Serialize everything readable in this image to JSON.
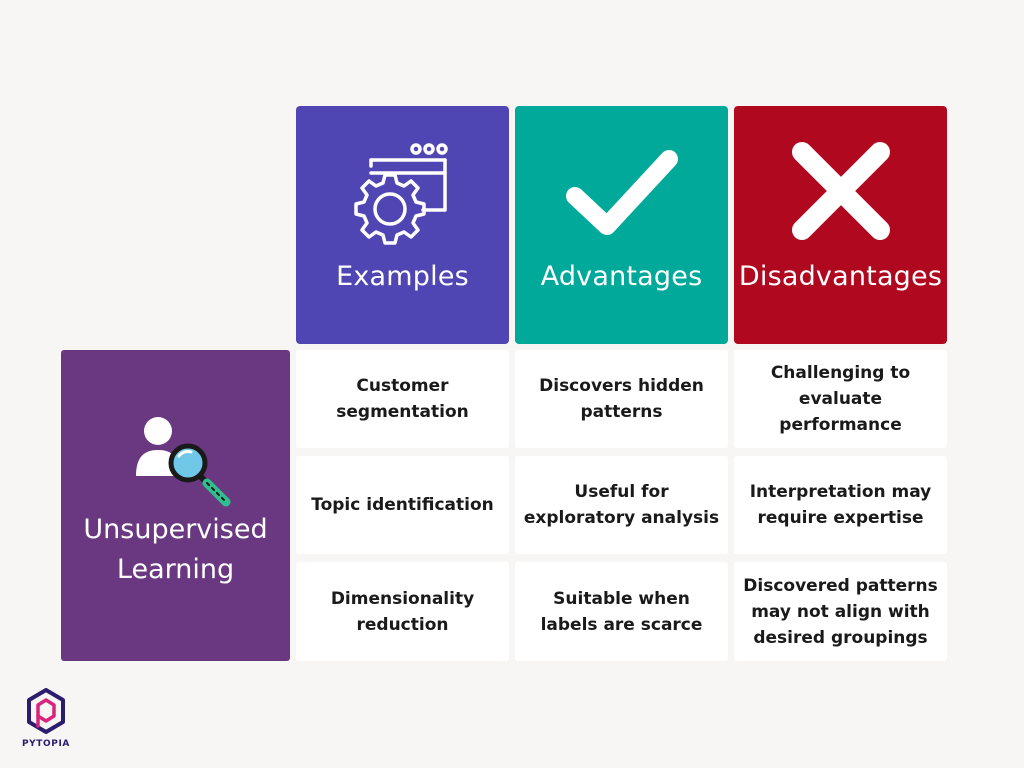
{
  "headers": {
    "examples": {
      "title": "Examples",
      "icon": "gear-window-icon",
      "color": "#4f46b4"
    },
    "advantages": {
      "title": "Advantages",
      "icon": "checkmark-icon",
      "color": "#00a99a"
    },
    "disadvantages": {
      "title": "Disadvantages",
      "icon": "cross-icon",
      "color": "#b0091f"
    }
  },
  "row_label": {
    "text_line1": "Unsupervised",
    "text_line2": "Learning",
    "icon": "user-magnifier-icon",
    "color": "#6a3881"
  },
  "rows": [
    {
      "examples": "Customer segmentation",
      "advantages": "Discovers hidden patterns",
      "disadvantages": "Challenging to evaluate performance"
    },
    {
      "examples": "Topic identification",
      "advantages": "Useful for exploratory analysis",
      "disadvantages": "Interpretation may require expertise"
    },
    {
      "examples": "Dimensionality reduction",
      "advantages": "Suitable when labels are scarce",
      "disadvantages": "Discovered patterns may not align with desired groupings"
    }
  ],
  "logo": {
    "text": "PYTOPIA",
    "icon": "pytopia-hexagon-logo"
  }
}
